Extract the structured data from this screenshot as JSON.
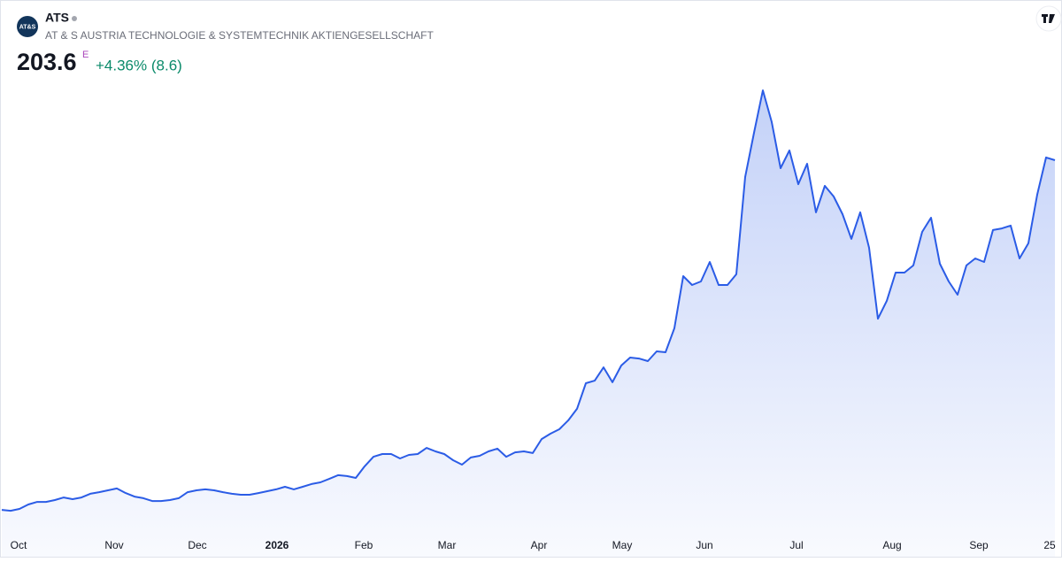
{
  "chart_data": {
    "type": "area",
    "logo_text": "AT&S",
    "title": "ATS",
    "subtitle": "AT & S AUSTRIA TECHNOLOGIE & SYSTEMTECHNIK AKTIENGESELLSCHAFT",
    "price": 203.6,
    "price_flag": "E",
    "change": "+4.36% (8.6)",
    "color": "#2b5ce6",
    "xlim": [
      0,
      119
    ],
    "ylim": [
      0,
      247.3
    ],
    "xticks": [
      {
        "value": 1.9,
        "label": "Oct"
      },
      {
        "value": 12.7,
        "label": "Nov"
      },
      {
        "value": 22.1,
        "label": "Dec"
      },
      {
        "value": 31.1,
        "label": "2026"
      },
      {
        "value": 40.9,
        "label": "Feb"
      },
      {
        "value": 50.3,
        "label": "Mar"
      },
      {
        "value": 60.7,
        "label": "Apr"
      },
      {
        "value": 70.1,
        "label": "May"
      },
      {
        "value": 79.4,
        "label": "Jun"
      },
      {
        "value": 89.8,
        "label": "Jul"
      },
      {
        "value": 100.6,
        "label": "Aug"
      },
      {
        "value": 110.4,
        "label": "Sep"
      },
      {
        "value": 118.4,
        "label": "25"
      }
    ],
    "values": [
      13.9,
      13.4,
      14.4,
      16.8,
      18.2,
      18.2,
      19.2,
      20.6,
      19.7,
      20.6,
      22.6,
      23.5,
      24.5,
      25.5,
      23.0,
      21.1,
      20.2,
      18.7,
      18.7,
      19.2,
      20.2,
      23.5,
      24.5,
      25.0,
      24.5,
      23.5,
      22.6,
      22.1,
      22.1,
      23.0,
      24.0,
      25.0,
      26.4,
      25.0,
      26.4,
      27.9,
      28.8,
      30.7,
      32.7,
      32.2,
      31.2,
      37.5,
      42.7,
      44.2,
      44.2,
      41.8,
      43.7,
      44.2,
      47.5,
      45.6,
      44.2,
      40.8,
      38.4,
      42.3,
      43.2,
      45.6,
      47.1,
      42.7,
      45.1,
      45.6,
      44.7,
      52.3,
      55.2,
      57.6,
      62.4,
      68.7,
      82.6,
      84.0,
      91.2,
      83.1,
      92.2,
      96.5,
      96.0,
      94.6,
      99.9,
      99.4,
      112.4,
      140.7,
      135.9,
      137.8,
      148.4,
      135.9,
      135.9,
      141.7,
      194.5,
      218.5,
      241.5,
      224.3,
      199.3,
      208.9,
      190.6,
      201.7,
      175.3,
      189.7,
      183.9,
      174.3,
      160.9,
      175.3,
      156.1,
      117.6,
      127.3,
      142.6,
      142.6,
      146.5,
      164.7,
      172.4,
      147.4,
      137.8,
      130.6,
      146.5,
      150.3,
      148.4,
      165.7,
      166.6,
      168.1,
      150.3,
      158.5,
      184.9,
      205.1,
      203.6
    ]
  }
}
